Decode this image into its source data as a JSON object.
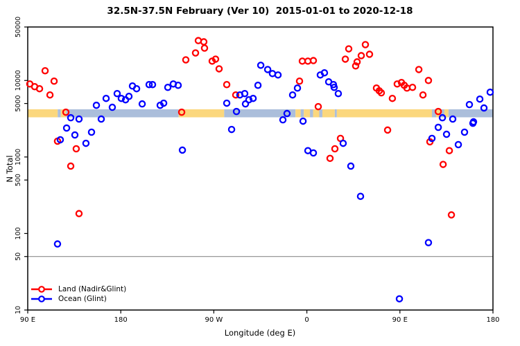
{
  "title": "32.5N-37.5N February (Ver 10)  2015-01-01 to 2020-12-18",
  "colors": {
    "land_series": "#ff0000",
    "ocean_series": "#0000ff",
    "strip_land": "#fbd77d",
    "strip_ocean": "#abbedb",
    "ref_line": "#8c8c8c",
    "axis": "#000000"
  },
  "legend": [
    {
      "label": "Land (Nadir&Glint)",
      "color": "#ff0000"
    },
    {
      "label": "Ocean (Glint)",
      "color": "#0000ff"
    }
  ],
  "chart_data": {
    "type": "scatter",
    "title": "32.5N-37.5N February (Ver 10)  2015-01-01 to 2020-12-18",
    "xlabel": "Longitude (deg E)",
    "ylabel": "N Total",
    "x_axis": {
      "min": 90,
      "max": 540,
      "ticks": [
        {
          "value": 90,
          "label": "90 E"
        },
        {
          "value": 180,
          "label": "180"
        },
        {
          "value": 270,
          "label": "90 W"
        },
        {
          "value": 360,
          "label": "0"
        },
        {
          "value": 450,
          "label": "90 E"
        },
        {
          "value": 540,
          "label": "180"
        }
      ]
    },
    "y_axis": {
      "scale": "log",
      "min": 10,
      "max": 50000,
      "ticks": [
        {
          "value": 50000,
          "label": "50000"
        },
        {
          "value": 10000,
          "label": "10000"
        },
        {
          "value": 5000,
          "label": "5000"
        },
        {
          "value": 1000,
          "label": "1000"
        },
        {
          "value": 500,
          "label": "500"
        },
        {
          "value": 100,
          "label": "100"
        },
        {
          "value": 50,
          "label": "50"
        },
        {
          "value": 10,
          "label": "10"
        }
      ]
    },
    "ref_line_y": 50,
    "map_band": {
      "value_top": 4200,
      "value_bottom": 3300,
      "segments": [
        {
          "from": 90,
          "to": 119,
          "type": "land"
        },
        {
          "from": 119,
          "to": 122,
          "type": "ocean"
        },
        {
          "from": 122,
          "to": 127,
          "type": "land"
        },
        {
          "from": 127,
          "to": 236,
          "type": "ocean"
        },
        {
          "from": 236,
          "to": 280,
          "type": "land"
        },
        {
          "from": 280,
          "to": 349,
          "type": "ocean"
        },
        {
          "from": 349,
          "to": 354,
          "type": "land"
        },
        {
          "from": 354,
          "to": 357,
          "type": "ocean"
        },
        {
          "from": 357,
          "to": 363,
          "type": "land"
        },
        {
          "from": 363,
          "to": 366,
          "type": "ocean"
        },
        {
          "from": 366,
          "to": 372,
          "type": "land"
        },
        {
          "from": 372,
          "to": 375,
          "type": "ocean"
        },
        {
          "from": 375,
          "to": 387,
          "type": "land"
        },
        {
          "from": 387,
          "to": 389,
          "type": "ocean"
        },
        {
          "from": 389,
          "to": 481,
          "type": "land"
        },
        {
          "from": 481,
          "to": 485,
          "type": "ocean"
        },
        {
          "from": 485,
          "to": 489,
          "type": "land"
        },
        {
          "from": 489,
          "to": 493,
          "type": "ocean"
        },
        {
          "from": 493,
          "to": 497,
          "type": "land"
        },
        {
          "from": 497,
          "to": 540,
          "type": "ocean"
        }
      ]
    },
    "series": [
      {
        "name": "Land (Nadir&Glint)",
        "color": "#ff0000",
        "points": [
          [
            106.8,
            13400
          ],
          [
            92,
            9000
          ],
          [
            96.7,
            8300
          ],
          [
            101.4,
            7800
          ],
          [
            115.5,
            9800
          ],
          [
            111.5,
            6470
          ],
          [
            126.9,
            3850
          ],
          [
            118.8,
            1610
          ],
          [
            136.9,
            1280
          ],
          [
            131.6,
            760
          ],
          [
            139.6,
            182
          ],
          [
            242.9,
            18600
          ],
          [
            255,
            33200
          ],
          [
            260.3,
            32000
          ],
          [
            261,
            26500
          ],
          [
            252.3,
            22900
          ],
          [
            268.4,
            17900
          ],
          [
            271.7,
            19000
          ],
          [
            275.1,
            14200
          ],
          [
            282.5,
            8830
          ],
          [
            291.2,
            6470
          ],
          [
            238.9,
            3850
          ],
          [
            355.6,
            17900
          ],
          [
            361,
            17900
          ],
          [
            366.3,
            18200
          ],
          [
            352.9,
            9800
          ],
          [
            371,
            4550
          ],
          [
            392.5,
            1750
          ],
          [
            387.1,
            1280
          ],
          [
            382.4,
            960
          ],
          [
            397.2,
            19000
          ],
          [
            400.5,
            25900
          ],
          [
            416.6,
            29400
          ],
          [
            412.6,
            21100
          ],
          [
            420.6,
            22000
          ],
          [
            408.6,
            17500
          ],
          [
            407.2,
            15500
          ],
          [
            427.3,
            7960
          ],
          [
            430,
            7330
          ],
          [
            432,
            6890
          ],
          [
            442.7,
            5830
          ],
          [
            447.4,
            9000
          ],
          [
            451.5,
            9400
          ],
          [
            454.2,
            8650
          ],
          [
            456.8,
            7960
          ],
          [
            462.2,
            8130
          ],
          [
            468.3,
            13900
          ],
          [
            477.6,
            10000
          ],
          [
            472.3,
            6470
          ],
          [
            438.1,
            2250
          ],
          [
            487.1,
            3930
          ],
          [
            479,
            1580
          ],
          [
            497.8,
            1210
          ],
          [
            491.8,
            800
          ],
          [
            499.8,
            175
          ]
        ]
      },
      {
        "name": "Ocean (Glint)",
        "color": "#0000ff",
        "points": [
          [
            156.4,
            4740
          ],
          [
            165.8,
            5830
          ],
          [
            131.6,
            3260
          ],
          [
            139.6,
            3130
          ],
          [
            161.1,
            3130
          ],
          [
            127.6,
            2390
          ],
          [
            121.5,
            1680
          ],
          [
            135.6,
            1940
          ],
          [
            151.7,
            2110
          ],
          [
            146.3,
            1510
          ],
          [
            118.8,
            73
          ],
          [
            171.8,
            4460
          ],
          [
            176.5,
            6740
          ],
          [
            180.5,
            5830
          ],
          [
            184.6,
            5590
          ],
          [
            187.9,
            6200
          ],
          [
            191.3,
            8470
          ],
          [
            195.3,
            7800
          ],
          [
            200.7,
            4940
          ],
          [
            207.4,
            8830
          ],
          [
            210.7,
            8830
          ],
          [
            218.1,
            4740
          ],
          [
            221.5,
            5050
          ],
          [
            225.5,
            8130
          ],
          [
            230.8,
            9000
          ],
          [
            235.5,
            8650
          ],
          [
            239.6,
            1230
          ],
          [
            312.7,
            8650
          ],
          [
            315.4,
            15800
          ],
          [
            322.1,
            13900
          ],
          [
            326.7,
            12300
          ],
          [
            332.1,
            11800
          ],
          [
            295.2,
            6470
          ],
          [
            299.9,
            6740
          ],
          [
            300.6,
            4940
          ],
          [
            303.9,
            5590
          ],
          [
            308,
            5830
          ],
          [
            282.5,
            5050
          ],
          [
            291.9,
            3930
          ],
          [
            287.2,
            2290
          ],
          [
            350.9,
            7960
          ],
          [
            346.2,
            6470
          ],
          [
            373,
            11800
          ],
          [
            377,
            12600
          ],
          [
            381.1,
            9600
          ],
          [
            385.7,
            8830
          ],
          [
            386.4,
            8130
          ],
          [
            390.4,
            6740
          ],
          [
            340.8,
            3700
          ],
          [
            336.8,
            3060
          ],
          [
            356.3,
            2940
          ],
          [
            361,
            1210
          ],
          [
            366.3,
            1130
          ],
          [
            395.1,
            1510
          ],
          [
            402.5,
            760
          ],
          [
            411.9,
            306
          ],
          [
            537.3,
            7030
          ],
          [
            527.3,
            5710
          ],
          [
            517.2,
            4840
          ],
          [
            531.3,
            4370
          ],
          [
            521.2,
            2880
          ],
          [
            491.1,
            3260
          ],
          [
            501.1,
            3130
          ],
          [
            520.6,
            2760
          ],
          [
            487.1,
            2440
          ],
          [
            495.1,
            1980
          ],
          [
            512.5,
            2110
          ],
          [
            481,
            1750
          ],
          [
            506.5,
            1450
          ],
          [
            477.6,
            76
          ],
          [
            449.5,
            14
          ]
        ]
      }
    ]
  }
}
